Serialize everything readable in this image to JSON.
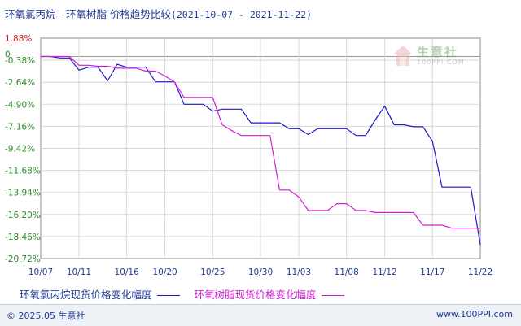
{
  "title": {
    "main": "环氧氯丙烷 - 环氧树脂 价格趋势比较",
    "range": "(2021-10-07 - 2021-11-22)"
  },
  "colors": {
    "series1": "#1a1acc",
    "series2": "#d11fcf",
    "positive_tick": "#c81e1e",
    "negative_tick": "#2e8b2e",
    "grid": "#d8d8d8",
    "axis": "#888888"
  },
  "chart_data": {
    "type": "line",
    "x_dates": [
      "10/07",
      "10/08",
      "10/09",
      "10/10",
      "10/11",
      "10/12",
      "10/13",
      "10/14",
      "10/15",
      "10/16",
      "10/17",
      "10/18",
      "10/19",
      "10/20",
      "10/21",
      "10/22",
      "10/23",
      "10/24",
      "10/25",
      "10/26",
      "10/27",
      "10/28",
      "10/29",
      "10/30",
      "10/31",
      "11/01",
      "11/02",
      "11/03",
      "11/04",
      "11/05",
      "11/06",
      "11/07",
      "11/08",
      "11/09",
      "11/10",
      "11/11",
      "11/12",
      "11/13",
      "11/14",
      "11/15",
      "11/16",
      "11/17",
      "11/18",
      "11/19",
      "11/20",
      "11/21",
      "11/22"
    ],
    "x_tick_labels": [
      "10/07",
      "10/11",
      "10/16",
      "10/20",
      "10/25",
      "10/30",
      "11/03",
      "11/08",
      "11/12",
      "11/17",
      "11/22"
    ],
    "y_ticks": [
      1.88,
      -0.38,
      -2.64,
      -4.9,
      -7.16,
      -9.42,
      -11.68,
      -13.94,
      -16.2,
      -18.46,
      -20.72
    ],
    "y_tick_labels": [
      "1.88%",
      "-0.38%",
      "-2.64%",
      "-4.90%",
      "-7.16%",
      "-9.42%",
      "-11.68%",
      "-13.94%",
      "-16.20%",
      "-18.46%",
      "-20.72%"
    ],
    "zero_label": "0",
    "ylim": [
      -20.72,
      1.88
    ],
    "grid": true,
    "series": [
      {
        "name": "环氧氯丙烷现货价格变化幅度",
        "values": [
          0,
          0,
          -0.15,
          -0.15,
          -1.4,
          -1.1,
          -1.1,
          -2.5,
          -0.8,
          -1.1,
          -1.1,
          -1.1,
          -2.6,
          -2.6,
          -2.6,
          -4.9,
          -4.9,
          -4.9,
          -5.6,
          -5.4,
          -5.4,
          -5.4,
          -6.8,
          -6.8,
          -6.8,
          -6.8,
          -7.4,
          -7.4,
          -8.0,
          -7.4,
          -7.4,
          -7.4,
          -7.4,
          -8.1,
          -8.1,
          -6.5,
          -5.1,
          -7.0,
          -7.0,
          -7.2,
          -7.2,
          -8.7,
          -13.4,
          -13.4,
          -13.4,
          -13.4,
          -19.3
        ]
      },
      {
        "name": "环氧树脂现货价格变化幅度",
        "values": [
          0,
          0,
          0,
          0,
          -0.9,
          -0.9,
          -1.0,
          -1.0,
          -1.2,
          -1.2,
          -1.2,
          -1.5,
          -1.5,
          -2.0,
          -2.6,
          -4.2,
          -4.2,
          -4.2,
          -4.2,
          -7.0,
          -7.6,
          -8.1,
          -8.1,
          -8.1,
          -8.1,
          -13.7,
          -13.7,
          -14.4,
          -15.8,
          -15.8,
          -15.8,
          -15.1,
          -15.1,
          -15.8,
          -15.8,
          -16.0,
          -16.0,
          -16.0,
          -16.0,
          -16.0,
          -17.3,
          -17.3,
          -17.3,
          -17.6,
          -17.6,
          -17.6,
          -17.6
        ]
      }
    ]
  },
  "legend": {
    "series1_label": "环氧氯丙烷现货价格变化幅度",
    "series2_label": "环氧树脂现货价格变化幅度"
  },
  "watermark": {
    "text": "生意社",
    "url": "100PPI.COM"
  },
  "footer": {
    "copyright": "© 2025.05 生意社",
    "site": "www.100PPI.com"
  }
}
